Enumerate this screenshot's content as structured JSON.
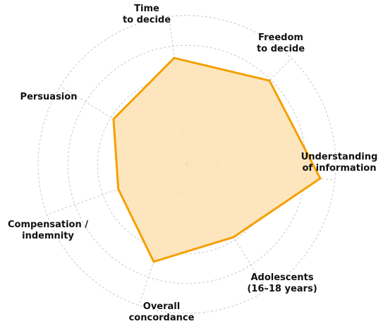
{
  "chart_data": {
    "type": "radar",
    "axes": [
      [
        "Understanding",
        "of information"
      ],
      [
        "Adolescents",
        "(16–18 years)"
      ],
      [
        "Overall",
        "concordance"
      ],
      [
        "Compensation /",
        "indemnity"
      ],
      [
        "Persuasion"
      ],
      [
        "Time",
        "to decide"
      ],
      [
        "Freedom",
        "to decide"
      ]
    ],
    "values": [
      0.9,
      0.58,
      0.69,
      0.49,
      0.58,
      0.72,
      0.79
    ],
    "range": [
      0,
      1
    ],
    "rings": 5,
    "grid": true,
    "colors": {
      "line": "#f5a000",
      "fill": "#fde2b3",
      "grid": "#c8c8c8"
    }
  }
}
